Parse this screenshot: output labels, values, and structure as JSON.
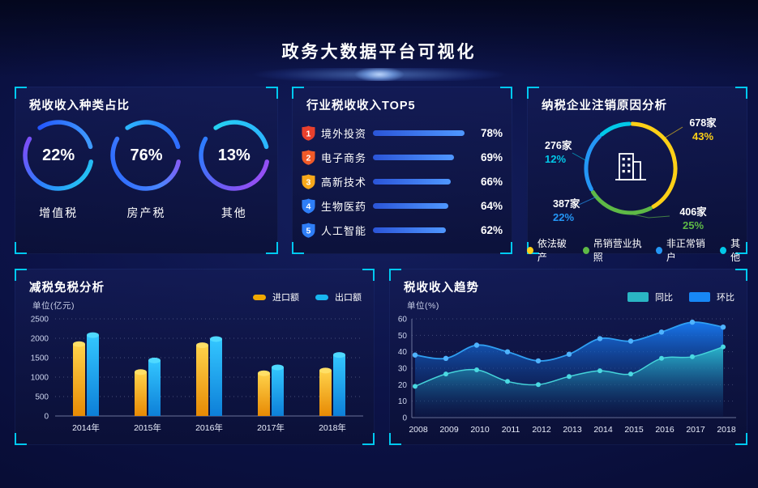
{
  "header": {
    "title": "政务大数据平台可视化"
  },
  "colors": {
    "panel_accent": "#00c9f0",
    "page_bg": "#0c1348"
  },
  "panels": {
    "tax_type": {
      "title": "税收收入种类占比",
      "rings": [
        {
          "percent": "22%",
          "label": "增值税"
        },
        {
          "percent": "76%",
          "label": "房产税"
        },
        {
          "percent": "13%",
          "label": "其他"
        }
      ]
    },
    "industry_top5": {
      "title": "行业税收收入TOP5",
      "rows": [
        {
          "rank": "1",
          "label": "境外投资",
          "percent": "78%",
          "badge_color": "#e8402d"
        },
        {
          "rank": "2",
          "label": "电子商务",
          "percent": "69%",
          "badge_color": "#f05a28"
        },
        {
          "rank": "3",
          "label": "高新技术",
          "percent": "66%",
          "badge_color": "#f7a81b"
        },
        {
          "rank": "4",
          "label": "生物医药",
          "percent": "64%",
          "badge_color": "#2e7ef7"
        },
        {
          "rank": "5",
          "label": "人工智能",
          "percent": "62%",
          "badge_color": "#2e7ef7"
        }
      ]
    },
    "cancellation": {
      "title": "纳税企业注销原因分析",
      "segments": [
        {
          "label": "依法破产",
          "count": "678家",
          "percent": "43%",
          "color": "#fdd017"
        },
        {
          "label": "吊销营业执照",
          "count": "406家",
          "percent": "25%",
          "color": "#5eb946"
        },
        {
          "label": "非正常销户",
          "count": "387家",
          "percent": "22%",
          "color": "#2496f5"
        },
        {
          "label": "其他",
          "count": "276家",
          "percent": "12%",
          "color": "#02c8e8"
        }
      ]
    },
    "tax_reduction": {
      "title": "减税免税分析",
      "unit": "单位(亿元)",
      "legend": [
        {
          "label": "进口额",
          "color": "#f0a800"
        },
        {
          "label": "出口额",
          "color": "#18b6f0"
        }
      ]
    },
    "tax_trend": {
      "title": "税收收入趋势",
      "unit": "单位(%)",
      "legend": [
        {
          "label": "同比",
          "color": "#2ab5c4"
        },
        {
          "label": "环比",
          "color": "#1787f5"
        }
      ]
    }
  },
  "chart_data": [
    {
      "id": "tax-type-rings",
      "type": "pie",
      "title": "税收收入种类占比",
      "unit": "%",
      "items": [
        {
          "label": "增值税",
          "value": 22
        },
        {
          "label": "房产税",
          "value": 76
        },
        {
          "label": "其他",
          "value": 13
        }
      ]
    },
    {
      "id": "industry-top5",
      "type": "bar",
      "orientation": "horizontal",
      "title": "行业税收收入TOP5",
      "unit": "%",
      "categories": [
        "境外投资",
        "电子商务",
        "高新技术",
        "生物医药",
        "人工智能"
      ],
      "values": [
        78,
        69,
        66,
        64,
        62
      ]
    },
    {
      "id": "cancellation-donut",
      "type": "pie",
      "title": "纳税企业注销原因分析",
      "items": [
        {
          "label": "依法破产",
          "count": 678,
          "percent": 43
        },
        {
          "label": "吊销营业执照",
          "count": 406,
          "percent": 25
        },
        {
          "label": "非正常销户",
          "count": 387,
          "percent": 22
        },
        {
          "label": "其他",
          "count": 276,
          "percent": 12
        }
      ],
      "legend_position": "bottom"
    },
    {
      "id": "tax-reduction",
      "type": "bar",
      "title": "减税免税分析",
      "ylabel": "单位(亿元)",
      "ylim": [
        0,
        2500
      ],
      "yticks": [
        0,
        500,
        1000,
        1500,
        2000,
        2500
      ],
      "grid": "dotted",
      "legend_position": "top-right",
      "categories": [
        "2014年",
        "2015年",
        "2016年",
        "2017年",
        "2018年"
      ],
      "series": [
        {
          "name": "进口额",
          "values": [
            1850,
            1130,
            1820,
            1100,
            1170
          ]
        },
        {
          "name": "出口额",
          "values": [
            2080,
            1430,
            1980,
            1250,
            1570
          ]
        }
      ]
    },
    {
      "id": "tax-trend",
      "type": "area",
      "title": "税收收入趋势",
      "ylabel": "单位(%)",
      "ylim": [
        0,
        60
      ],
      "yticks": [
        0,
        10,
        20,
        30,
        40,
        50,
        60
      ],
      "grid": "dotted",
      "legend_position": "top-right",
      "x": [
        "2008",
        "2009",
        "2010",
        "2011",
        "2012",
        "2013",
        "2014",
        "2015",
        "2016",
        "2017",
        "2018"
      ],
      "series": [
        {
          "name": "同比",
          "values": [
            19,
            26.5,
            29,
            22,
            20,
            25,
            28.5,
            26.5,
            36,
            37,
            43
          ]
        },
        {
          "name": "环比",
          "values": [
            38,
            36,
            44,
            40,
            34.5,
            38.5,
            48,
            46.5,
            52,
            58,
            55
          ]
        }
      ]
    }
  ]
}
